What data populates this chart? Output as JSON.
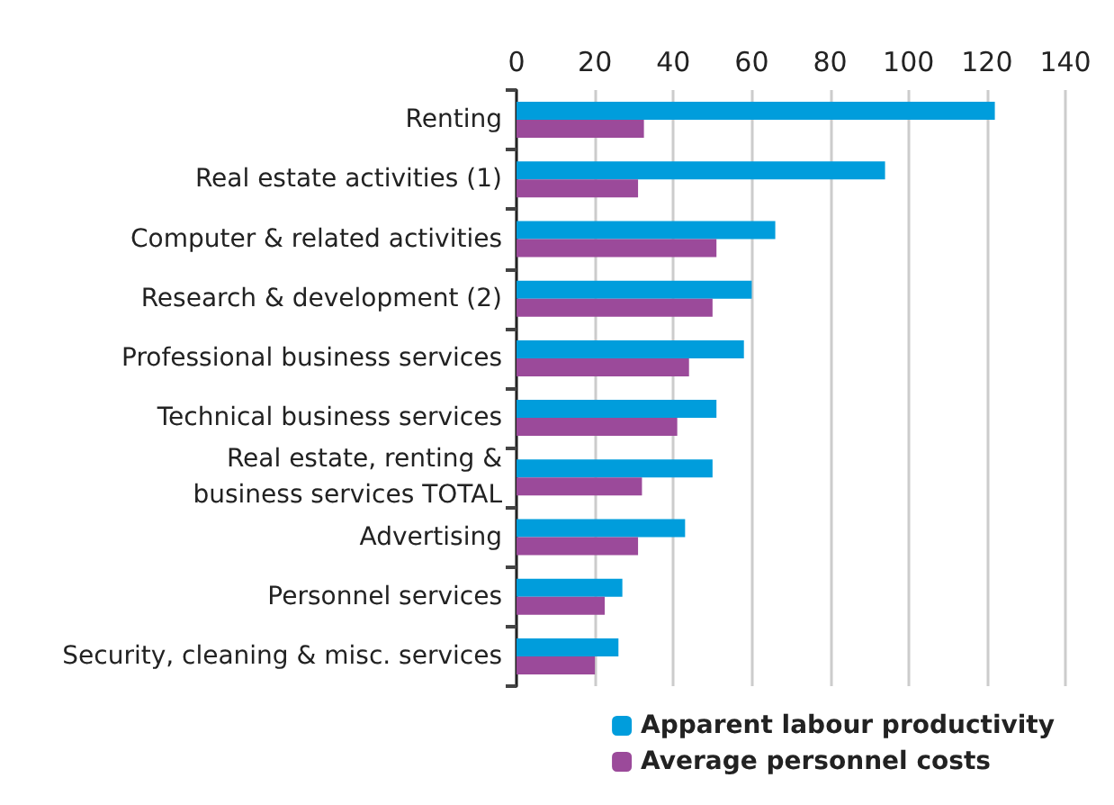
{
  "chart_data": {
    "type": "bar",
    "orientation": "horizontal",
    "categories": [
      "Renting",
      "Real estate activities (1)",
      "Computer & related activities",
      "Research & development (2)",
      "Professional business services",
      "Technical business services",
      "Real estate, renting &\nbusiness services TOTAL",
      "Advertising",
      "Personnel services",
      "Security, cleaning & misc. services"
    ],
    "series": [
      {
        "name": "Apparent labour productivity",
        "color": "#009ddc",
        "values": [
          122,
          94,
          66,
          60,
          58,
          51,
          50,
          43,
          27,
          26
        ]
      },
      {
        "name": "Average personnel costs",
        "color": "#9b4a9a",
        "values": [
          32.5,
          31,
          51,
          50,
          44,
          41,
          32,
          31,
          22.5,
          20
        ]
      }
    ],
    "xlim": [
      0,
      140
    ],
    "xticks": [
      0,
      20,
      40,
      60,
      80,
      100,
      120,
      140
    ],
    "grid": "x",
    "legend": "bottom right"
  }
}
